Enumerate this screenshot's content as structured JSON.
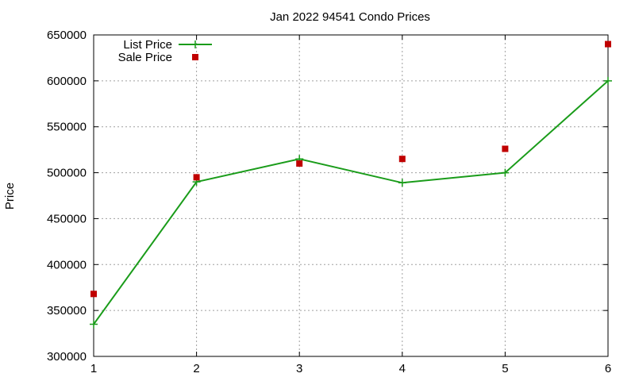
{
  "chart_data": {
    "type": "line",
    "title": "Jan 2022 94541 Condo Prices",
    "xlabel": "",
    "ylabel": "Price",
    "x": [
      1,
      2,
      3,
      4,
      5,
      6
    ],
    "xlim": [
      1,
      6
    ],
    "ylim": [
      300000,
      650000
    ],
    "xticks": [
      1,
      2,
      3,
      4,
      5,
      6
    ],
    "yticks": [
      300000,
      350000,
      400000,
      450000,
      500000,
      550000,
      600000,
      650000
    ],
    "grid": true,
    "legend_position": "top-left",
    "series": [
      {
        "name": "List Price",
        "style": "line-with-plus-markers",
        "color": "#1a9c1a",
        "values": [
          335000,
          490000,
          515000,
          489000,
          500000,
          600000
        ]
      },
      {
        "name": "Sale Price",
        "style": "square-markers",
        "color": "#c00000",
        "values": [
          368000,
          495000,
          510000,
          515000,
          526000,
          640000
        ]
      }
    ]
  }
}
